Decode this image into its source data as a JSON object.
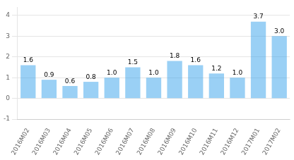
{
  "chart_data": {
    "type": "bar",
    "categories": [
      "2016M02",
      "2016M03",
      "2016M04",
      "2016M05",
      "2016M06",
      "2016M07",
      "2016M08",
      "2016M09",
      "2016M10",
      "2016M11",
      "2016M12",
      "2017M01",
      "2017M02"
    ],
    "values": [
      1.6,
      0.9,
      0.6,
      0.8,
      1.0,
      1.5,
      1.0,
      1.8,
      1.6,
      1.2,
      1.0,
      3.7,
      3.0
    ],
    "value_labels": [
      "1.6",
      "0.9",
      "0.6",
      "0.8",
      "1.0",
      "1.5",
      "1.0",
      "1.8",
      "1.6",
      "1.2",
      "1.0",
      "3.7",
      "3.0"
    ],
    "ylim": [
      -1,
      4.4
    ],
    "yticks": [
      -1,
      0,
      1,
      2,
      3,
      4
    ],
    "grid": true,
    "data_labels": true
  }
}
